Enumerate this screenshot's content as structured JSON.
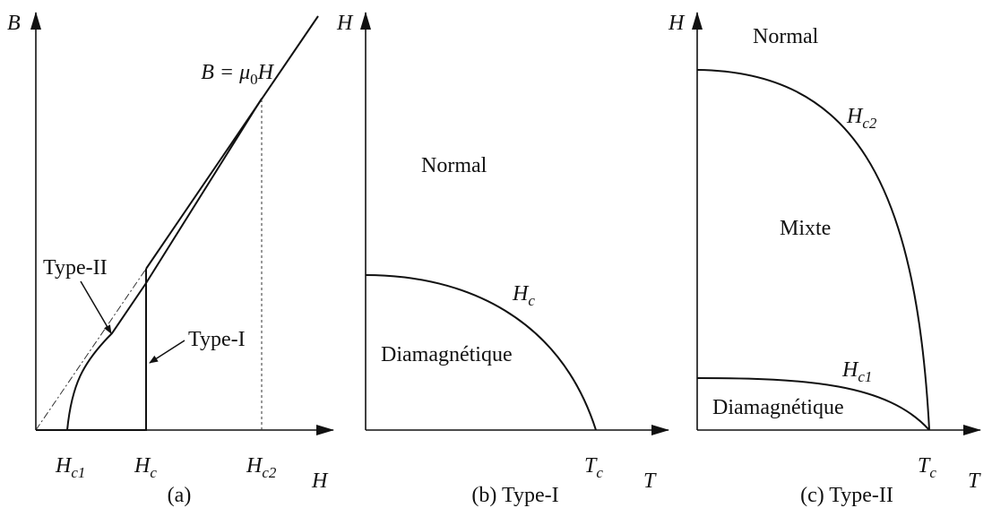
{
  "panels": [
    {
      "caption": "(a)",
      "y_axis": {
        "symbol": "B"
      },
      "x_axis": {
        "symbol": "H"
      },
      "ticks": [
        {
          "symbol": "H",
          "sub": "c1"
        },
        {
          "symbol": "H",
          "sub": "c"
        },
        {
          "symbol": "H",
          "sub": "c2"
        }
      ],
      "line_label": {
        "lhs": "B = ",
        "mu": "μ",
        "sub": "0",
        "rhs": "H"
      },
      "curve_labels": [
        "Type-II",
        "Type-I"
      ]
    },
    {
      "caption": "(b) Type-I",
      "y_axis": {
        "symbol": "H"
      },
      "x_axis": {
        "symbol": "T"
      },
      "ticks": [
        {
          "symbol": "T",
          "sub": "c"
        }
      ],
      "regions": [
        "Normal",
        "Diamagnétique"
      ],
      "curve_labels": [
        {
          "symbol": "H",
          "sub": "c"
        }
      ]
    },
    {
      "caption": "(c) Type-II",
      "y_axis": {
        "symbol": "H"
      },
      "x_axis": {
        "symbol": "T"
      },
      "ticks": [
        {
          "symbol": "T",
          "sub": "c"
        }
      ],
      "regions": [
        "Normal",
        "Mixte",
        "Diamagnétique"
      ],
      "curve_labels": [
        {
          "symbol": "H",
          "sub": "c2"
        },
        {
          "symbol": "H",
          "sub": "c1"
        }
      ]
    }
  ]
}
